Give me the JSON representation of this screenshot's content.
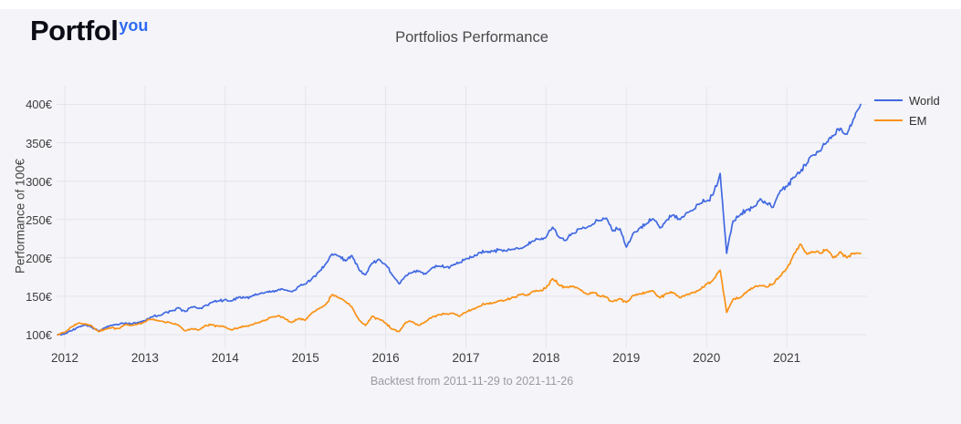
{
  "logo": {
    "text_main": "Portfol",
    "text_accent": "you"
  },
  "header": {
    "title": "Portfolios Performance"
  },
  "footer": {
    "caption": "Backtest from 2011-11-29 to 2021-11-26"
  },
  "colors": {
    "background": "#f4f4f9",
    "grid": "#e4e4ec",
    "world_line": "#4169e1",
    "em_line": "#fa9114",
    "logo_accent": "#2d6bf2",
    "tick_text": "#3d3d3d",
    "caption_text": "#9a9aa2"
  },
  "chart_data": {
    "type": "line",
    "title": "Portfolios Performance",
    "xlabel": "",
    "ylabel": "Performance of 100€",
    "caption": "Backtest from 2011-11-29 to 2021-11-26",
    "grid": true,
    "legend_position": "top-right",
    "x_tick_labels": [
      "2012",
      "2013",
      "2014",
      "2015",
      "2016",
      "2017",
      "2018",
      "2019",
      "2020",
      "2021"
    ],
    "y_tick_labels": [
      "100€",
      "150€",
      "200€",
      "250€",
      "300€",
      "350€",
      "400€"
    ],
    "y_tick_values": [
      100,
      150,
      200,
      250,
      300,
      350,
      400
    ],
    "x_tick_values": [
      2012,
      2013,
      2014,
      2015,
      2016,
      2017,
      2018,
      2019,
      2020,
      2021
    ],
    "xlim": [
      2011.91,
      2022.0
    ],
    "ylim": [
      82,
      423
    ],
    "x": [
      2011.91,
      2012,
      2012.08,
      2012.17,
      2012.25,
      2012.33,
      2012.42,
      2012.5,
      2012.58,
      2012.67,
      2012.75,
      2012.83,
      2012.92,
      2013,
      2013.08,
      2013.17,
      2013.25,
      2013.33,
      2013.42,
      2013.5,
      2013.58,
      2013.67,
      2013.75,
      2013.83,
      2013.92,
      2014,
      2014.08,
      2014.17,
      2014.25,
      2014.33,
      2014.42,
      2014.5,
      2014.58,
      2014.67,
      2014.75,
      2014.83,
      2014.92,
      2015,
      2015.08,
      2015.17,
      2015.25,
      2015.33,
      2015.42,
      2015.5,
      2015.58,
      2015.67,
      2015.75,
      2015.83,
      2015.92,
      2016,
      2016.08,
      2016.17,
      2016.25,
      2016.33,
      2016.42,
      2016.5,
      2016.58,
      2016.67,
      2016.75,
      2016.83,
      2016.92,
      2017,
      2017.08,
      2017.17,
      2017.25,
      2017.33,
      2017.42,
      2017.5,
      2017.58,
      2017.67,
      2017.75,
      2017.83,
      2017.92,
      2018,
      2018.08,
      2018.17,
      2018.25,
      2018.33,
      2018.42,
      2018.5,
      2018.58,
      2018.67,
      2018.75,
      2018.83,
      2018.92,
      2019,
      2019.08,
      2019.17,
      2019.25,
      2019.33,
      2019.42,
      2019.5,
      2019.58,
      2019.67,
      2019.75,
      2019.83,
      2019.92,
      2020,
      2020.08,
      2020.17,
      2020.25,
      2020.33,
      2020.42,
      2020.5,
      2020.58,
      2020.67,
      2020.75,
      2020.83,
      2020.92,
      2021,
      2021.08,
      2021.17,
      2021.25,
      2021.33,
      2021.42,
      2021.5,
      2021.58,
      2021.67,
      2021.75,
      2021.83,
      2021.92
    ],
    "series": [
      {
        "name": "World",
        "color": "#4169e1",
        "values": [
          100,
          101,
          105,
          110,
          113,
          110,
          105,
          109,
          112,
          113,
          115,
          114,
          116,
          118,
          123,
          125,
          129,
          131,
          135,
          130,
          136,
          134,
          138,
          142,
          144,
          146,
          144,
          149,
          148,
          150,
          153,
          155,
          156,
          159,
          158,
          156,
          163,
          166,
          173,
          182,
          192,
          205,
          202,
          196,
          203,
          184,
          178,
          193,
          198,
          191,
          178,
          166,
          177,
          181,
          183,
          179,
          187,
          189,
          188,
          190,
          194,
          199,
          201,
          207,
          208,
          209,
          211,
          209,
          211,
          212,
          216,
          222,
          224,
          227,
          240,
          226,
          223,
          232,
          238,
          239,
          244,
          249,
          252,
          235,
          238,
          214,
          231,
          239,
          244,
          251,
          239,
          249,
          256,
          250,
          259,
          262,
          271,
          274,
          282,
          310,
          206,
          248,
          256,
          263,
          266,
          277,
          271,
          266,
          288,
          293,
          305,
          312,
          323,
          334,
          339,
          351,
          359,
          369,
          361,
          381,
          400
        ]
      },
      {
        "name": "EM",
        "color": "#fa9114",
        "values": [
          100,
          103,
          110,
          115,
          114,
          112,
          104,
          107,
          109,
          108,
          113,
          112,
          114,
          117,
          120,
          118,
          116,
          115,
          112,
          105,
          108,
          106,
          112,
          113,
          111,
          110,
          106,
          109,
          111,
          113,
          116,
          119,
          123,
          125,
          120,
          116,
          121,
          119,
          128,
          134,
          139,
          152,
          148,
          143,
          136,
          119,
          112,
          124,
          120,
          115,
          107,
          104,
          116,
          117,
          112,
          117,
          123,
          126,
          127,
          128,
          124,
          129,
          133,
          137,
          140,
          141,
          144,
          145,
          149,
          152,
          151,
          156,
          157,
          161,
          173,
          164,
          162,
          163,
          159,
          153,
          155,
          150,
          149,
          143,
          147,
          142,
          151,
          153,
          155,
          157,
          148,
          154,
          155,
          148,
          152,
          155,
          159,
          166,
          171,
          184,
          129,
          146,
          148,
          156,
          161,
          164,
          162,
          166,
          176,
          186,
          203,
          218,
          205,
          208,
          206,
          211,
          200,
          208,
          200,
          206,
          206
        ]
      }
    ]
  }
}
